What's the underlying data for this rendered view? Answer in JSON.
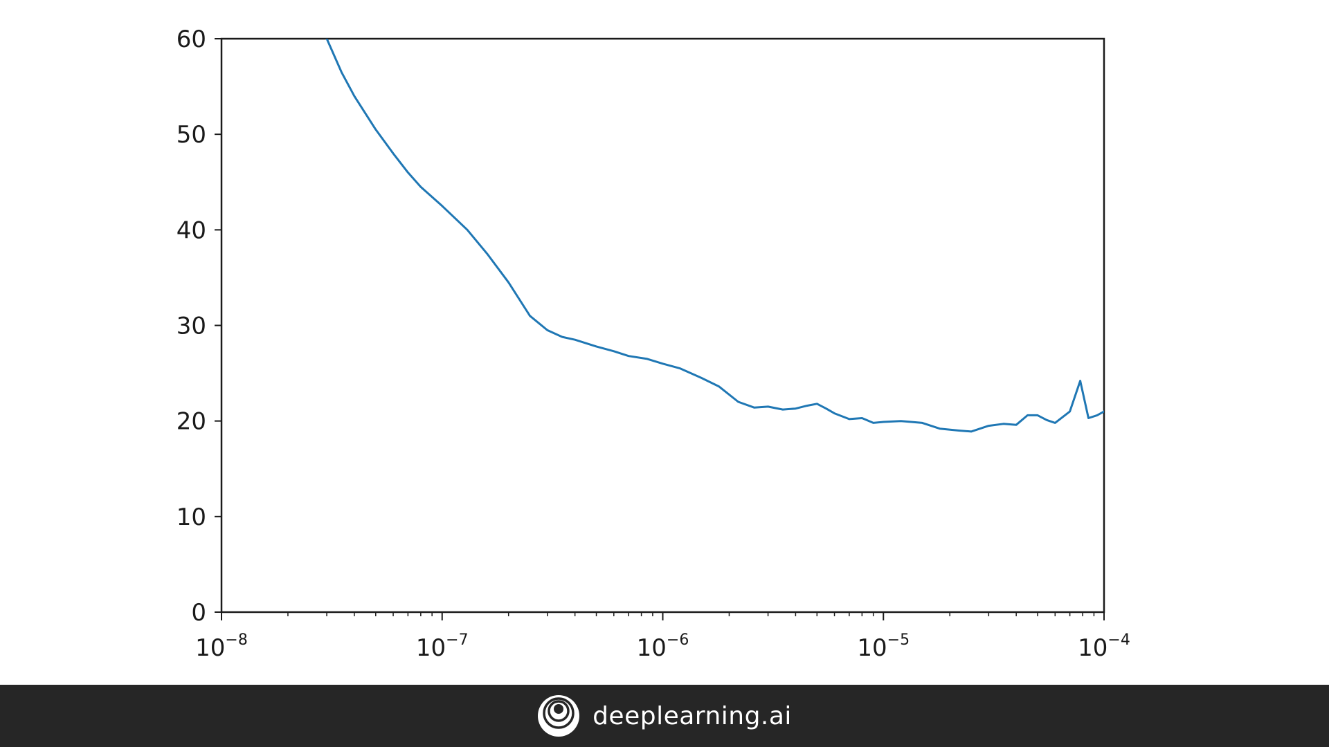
{
  "chart_data": {
    "type": "line",
    "xscale": "log",
    "xlim": [
      1e-08,
      0.0001
    ],
    "ylim": [
      0,
      60
    ],
    "xticks": [
      1e-08,
      1e-07,
      1e-06,
      1e-05,
      0.0001
    ],
    "xtick_labels": [
      {
        "base": "10",
        "exp": "−8"
      },
      {
        "base": "10",
        "exp": "−7"
      },
      {
        "base": "10",
        "exp": "−6"
      },
      {
        "base": "10",
        "exp": "−5"
      },
      {
        "base": "10",
        "exp": "−4"
      }
    ],
    "yticks": [
      0,
      10,
      20,
      30,
      40,
      50,
      60
    ],
    "ytick_labels": [
      "0",
      "10",
      "20",
      "30",
      "40",
      "50",
      "60"
    ],
    "grid": false,
    "line_color": "#1f77b4",
    "series": [
      {
        "x": [
          3e-08,
          3.5e-08,
          4e-08,
          5e-08,
          6e-08,
          7e-08,
          8e-08,
          1e-07,
          1.3e-07,
          1.6e-07,
          2e-07,
          2.5e-07,
          3e-07,
          3.5e-07,
          4e-07,
          5e-07,
          6e-07,
          7e-07,
          8.5e-07,
          1e-06,
          1.2e-06,
          1.5e-06,
          1.8e-06,
          2.2e-06,
          2.6e-06,
          3e-06,
          3.5e-06,
          4e-06,
          4.5e-06,
          5e-06,
          5.5e-06,
          6e-06,
          7e-06,
          8e-06,
          9e-06,
          1e-05,
          1.2e-05,
          1.5e-05,
          1.8e-05,
          2.2e-05,
          2.5e-05,
          3e-05,
          3.5e-05,
          4e-05,
          4.5e-05,
          5e-05,
          5.5e-05,
          6e-05,
          7e-05,
          7.8e-05,
          8.5e-05,
          9.3e-05,
          0.0001
        ],
        "y": [
          60,
          56.5,
          54,
          50.5,
          48,
          46,
          44.5,
          42.5,
          40,
          37.5,
          34.5,
          31,
          29.5,
          28.8,
          28.5,
          27.8,
          27.3,
          26.8,
          26.5,
          26,
          25.5,
          24.5,
          23.6,
          22,
          21.4,
          21.5,
          21.2,
          21.3,
          21.6,
          21.8,
          21.3,
          20.8,
          20.2,
          20.3,
          19.8,
          19.9,
          20.0,
          19.8,
          19.2,
          19.0,
          18.9,
          19.5,
          19.7,
          19.6,
          20.6,
          20.6,
          20.1,
          19.8,
          21.0,
          24.2,
          20.3,
          20.6,
          21.0
        ]
      }
    ]
  },
  "footer": {
    "brand_name": "deeplearning.ai",
    "logo_icon": "deeplearning-swirl-icon"
  }
}
